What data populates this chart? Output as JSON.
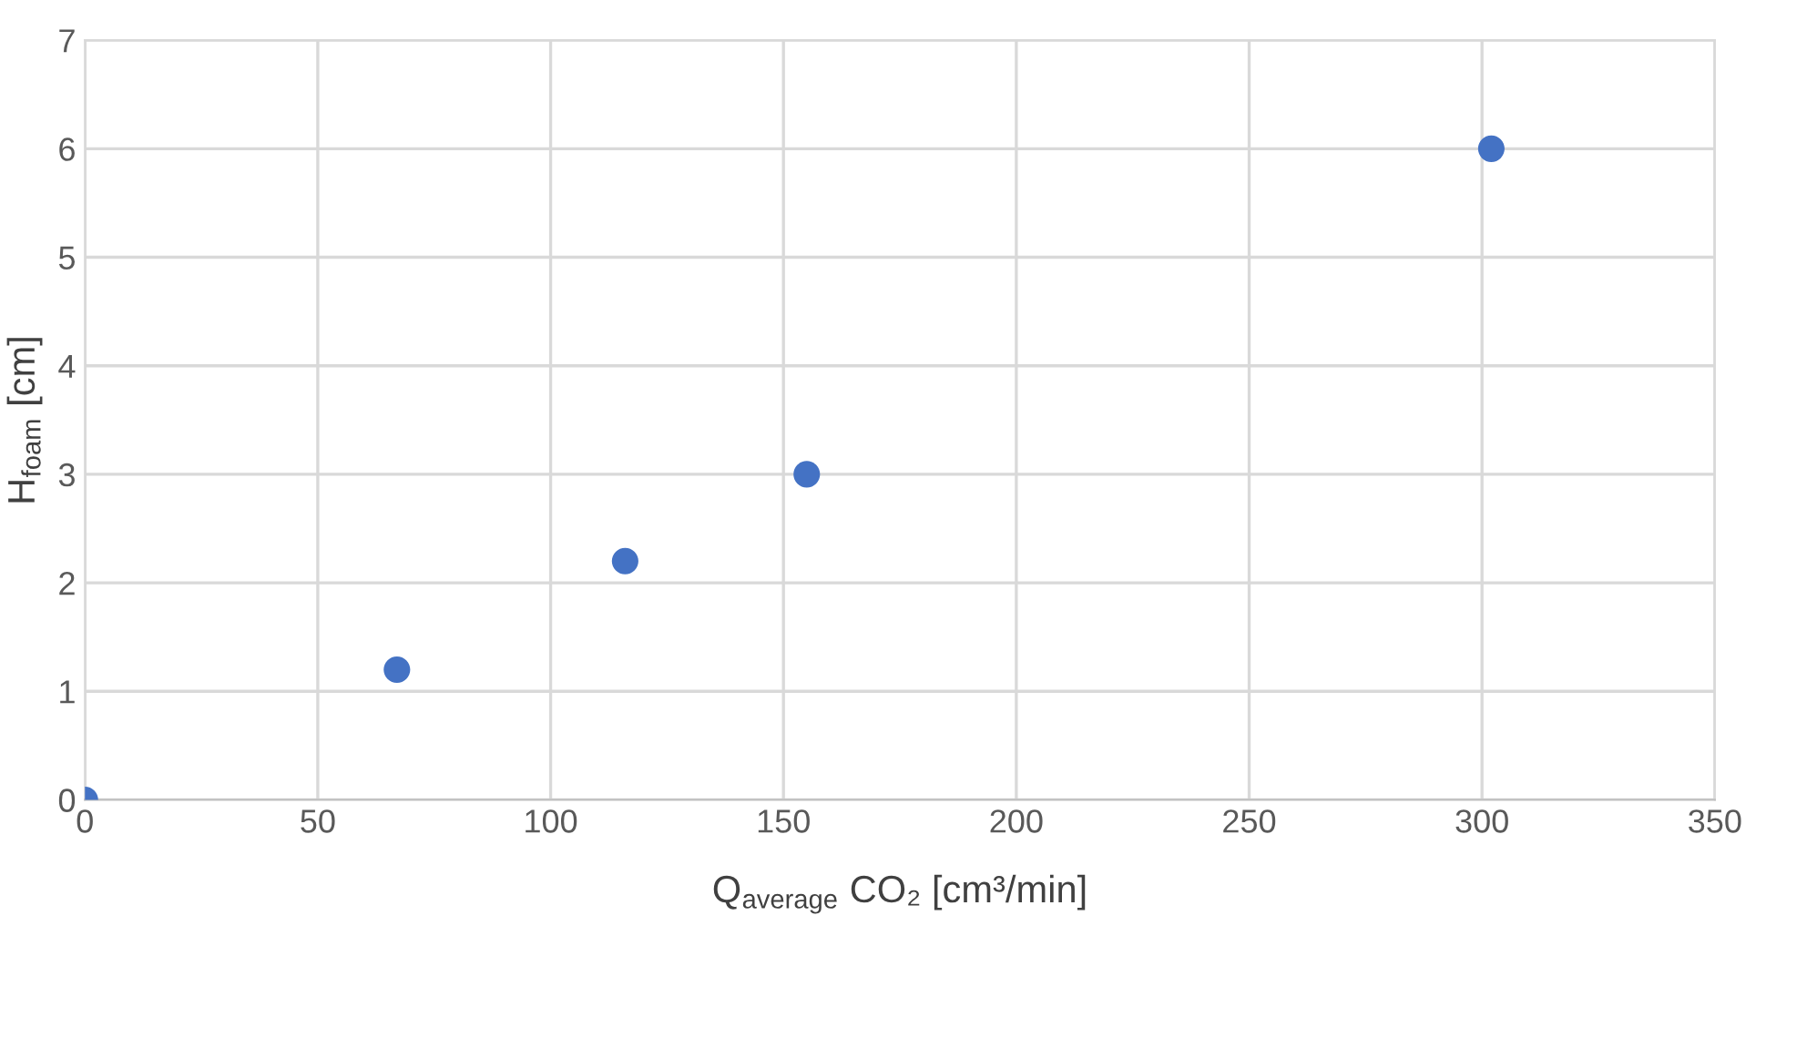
{
  "chart_data": {
    "type": "scatter",
    "xlabel": "Q$_{average}$ CO₂ [cm³/min]",
    "ylabel": "H$_{foam}$ [cm]",
    "x": [
      0,
      67,
      116,
      155,
      302
    ],
    "series": [
      {
        "color": "#4472c4",
        "values": [
          0,
          1.2,
          2.2,
          3,
          6
        ]
      }
    ],
    "xlim": [
      0,
      350
    ],
    "xticks": [
      0,
      50,
      100,
      150,
      200,
      250,
      300,
      350
    ],
    "ylim": [
      0,
      7
    ],
    "yticks": [
      0,
      1,
      2,
      3,
      4,
      5,
      6,
      7
    ],
    "grid": true,
    "marker": "circle"
  }
}
